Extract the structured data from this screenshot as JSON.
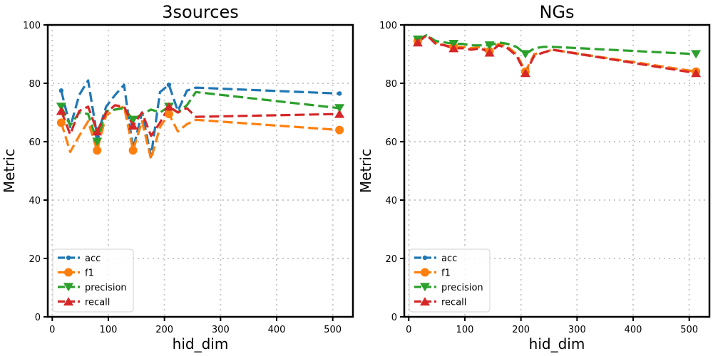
{
  "chart_data": [
    {
      "type": "line",
      "title": "3sources",
      "xlabel": "hid_dim",
      "ylabel": "Metric",
      "xlim": [
        -8,
        536
      ],
      "ylim": [
        0,
        100
      ],
      "xticks": [
        0,
        100,
        200,
        300,
        400,
        500
      ],
      "yticks": [
        0,
        20,
        40,
        60,
        80,
        100
      ],
      "grid": true,
      "legend": "lower-left",
      "x": [
        16,
        32,
        48,
        64,
        80,
        96,
        112,
        128,
        144,
        160,
        176,
        192,
        208,
        224,
        240,
        256,
        512
      ],
      "series": [
        {
          "name": "acc",
          "color": "#1f77b4",
          "marker": "point",
          "values": [
            77.5,
            65.0,
            76.0,
            81.0,
            62.0,
            72.0,
            76.0,
            79.5,
            57.5,
            70.0,
            55.0,
            77.0,
            79.5,
            70.5,
            77.5,
            78.5,
            76.5
          ]
        },
        {
          "name": "f1",
          "color": "#ff7f0e",
          "marker": "circle",
          "values": [
            66.5,
            56.5,
            62.0,
            67.0,
            57.0,
            69.0,
            71.0,
            72.0,
            57.0,
            67.0,
            54.0,
            65.0,
            69.5,
            63.5,
            66.0,
            67.5,
            64.0
          ]
        },
        {
          "name": "precision",
          "color": "#2ca02c",
          "marker": "triangle-down",
          "values": [
            72.0,
            65.5,
            70.0,
            69.5,
            60.0,
            70.5,
            71.0,
            71.5,
            67.5,
            69.5,
            71.0,
            70.0,
            72.0,
            70.0,
            72.5,
            77.0,
            71.5
          ]
        },
        {
          "name": "recall",
          "color": "#d62728",
          "marker": "triangle-up",
          "values": [
            70.5,
            62.5,
            70.5,
            72.0,
            63.5,
            70.0,
            72.5,
            72.0,
            65.5,
            70.0,
            62.0,
            66.5,
            72.0,
            70.0,
            71.5,
            68.5,
            69.5
          ]
        }
      ]
    },
    {
      "type": "line",
      "title": "NGs",
      "xlabel": "hid_dim",
      "ylabel": "Metric",
      "xlim": [
        -8,
        536
      ],
      "ylim": [
        0,
        100
      ],
      "xticks": [
        0,
        100,
        200,
        300,
        400,
        500
      ],
      "yticks": [
        0,
        20,
        40,
        60,
        80,
        100
      ],
      "grid": true,
      "legend": "lower-left",
      "x": [
        16,
        32,
        48,
        64,
        80,
        96,
        112,
        128,
        144,
        160,
        176,
        192,
        208,
        224,
        240,
        256,
        512
      ],
      "series": [
        {
          "name": "acc",
          "color": "#1f77b4",
          "marker": "point",
          "values": [
            94.5,
            96.5,
            94.0,
            93.0,
            92.5,
            92.5,
            92.0,
            92.5,
            91.0,
            93.5,
            92.5,
            90.0,
            84.0,
            90.0,
            90.5,
            91.5,
            84.0
          ]
        },
        {
          "name": "f1",
          "color": "#ff7f0e",
          "marker": "circle",
          "values": [
            94.5,
            96.5,
            94.0,
            93.0,
            92.5,
            92.5,
            92.0,
            92.5,
            91.0,
            93.5,
            92.5,
            90.0,
            84.0,
            90.0,
            90.5,
            91.5,
            84.0
          ]
        },
        {
          "name": "precision",
          "color": "#2ca02c",
          "marker": "triangle-down",
          "values": [
            95.0,
            96.5,
            94.5,
            94.0,
            93.5,
            93.5,
            93.0,
            93.0,
            93.0,
            94.0,
            93.5,
            92.5,
            90.0,
            92.0,
            92.5,
            92.5,
            90.0
          ]
        },
        {
          "name": "recall",
          "color": "#d62728",
          "marker": "triangle-up",
          "values": [
            94.0,
            96.5,
            93.5,
            93.0,
            92.0,
            92.0,
            91.5,
            92.0,
            90.5,
            93.0,
            92.0,
            89.5,
            83.5,
            89.5,
            90.5,
            91.5,
            83.5
          ]
        }
      ]
    }
  ]
}
